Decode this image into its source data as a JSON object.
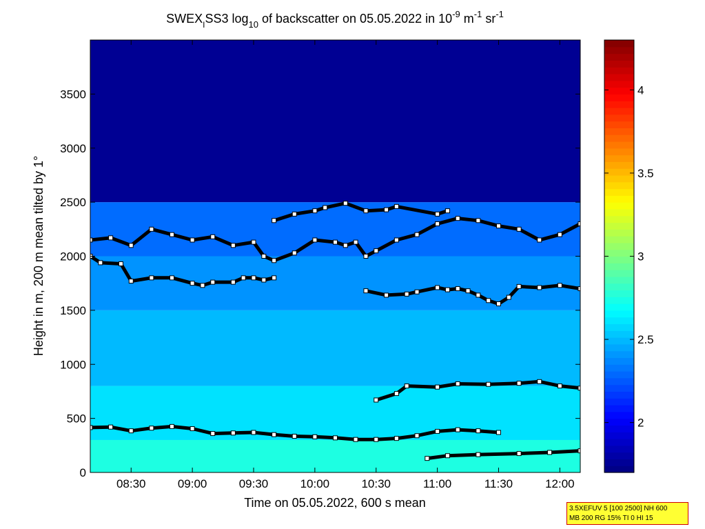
{
  "chart_data": {
    "type": "heatmap",
    "title": {
      "prefix": "SWEX",
      "sub_i": "I",
      "mid": "SS3 log",
      "sub_10": "10",
      "mid2": " of backscatter on 05.05.2022 in 10",
      "sup1": "-9",
      "unit1": " m",
      "sup2": "-1",
      "unit2": " sr",
      "sup3": "-1"
    },
    "xlabel": "Time on 05.05.2022, 600 s mean",
    "ylabel": "Height in m, 200 m mean tilted by 1°",
    "x_range_minutes": [
      490,
      730
    ],
    "ylim": [
      0,
      4000
    ],
    "x_ticks": [
      {
        "minute": 510,
        "label": "08:30"
      },
      {
        "minute": 540,
        "label": "09:00"
      },
      {
        "minute": 570,
        "label": "09:30"
      },
      {
        "minute": 600,
        "label": "10:00"
      },
      {
        "minute": 630,
        "label": "10:30"
      },
      {
        "minute": 660,
        "label": "11:00"
      },
      {
        "minute": 690,
        "label": "11:30"
      },
      {
        "minute": 720,
        "label": "12:00"
      }
    ],
    "y_ticks": [
      0,
      500,
      1000,
      1500,
      2000,
      2500,
      3000,
      3500
    ],
    "colorbar": {
      "clim": [
        1.7,
        4.3
      ],
      "ticks": [
        2,
        2.5,
        3,
        3.5,
        4
      ],
      "tick_labels": [
        "2",
        "2.5",
        "3",
        "3.5",
        "4"
      ],
      "colormap": "jet"
    },
    "field_bands": [
      {
        "from": 0,
        "to": 300,
        "value": 2.75
      },
      {
        "from": 300,
        "to": 800,
        "value": 2.6
      },
      {
        "from": 800,
        "to": 1500,
        "value": 2.5
      },
      {
        "from": 1500,
        "to": 2000,
        "value": 2.4
      },
      {
        "from": 2000,
        "to": 2500,
        "value": 2.3
      },
      {
        "from": 2500,
        "to": 4000,
        "value": 1.75
      }
    ],
    "layer_series": [
      {
        "points": [
          [
            490,
            415
          ],
          [
            500,
            420
          ],
          [
            510,
            385
          ],
          [
            520,
            410
          ],
          [
            530,
            425
          ],
          [
            540,
            405
          ],
          [
            550,
            360
          ],
          [
            560,
            365
          ],
          [
            570,
            370
          ],
          [
            580,
            350
          ],
          [
            590,
            335
          ],
          [
            600,
            330
          ],
          [
            610,
            320
          ],
          [
            620,
            305
          ],
          [
            630,
            305
          ],
          [
            640,
            315
          ],
          [
            650,
            340
          ],
          [
            660,
            380
          ],
          [
            670,
            395
          ],
          [
            680,
            385
          ],
          [
            690,
            370
          ]
        ]
      },
      {
        "points": [
          [
            655,
            130
          ],
          [
            665,
            155
          ],
          [
            680,
            165
          ],
          [
            700,
            175
          ],
          [
            715,
            185
          ],
          [
            730,
            200
          ]
        ]
      },
      {
        "points": [
          [
            630,
            670
          ],
          [
            640,
            730
          ],
          [
            645,
            800
          ],
          [
            660,
            790
          ],
          [
            670,
            820
          ],
          [
            685,
            815
          ],
          [
            700,
            825
          ],
          [
            710,
            840
          ],
          [
            720,
            800
          ],
          [
            730,
            780
          ]
        ]
      },
      {
        "points": [
          [
            490,
            2000
          ],
          [
            495,
            1940
          ],
          [
            505,
            1930
          ],
          [
            510,
            1770
          ],
          [
            520,
            1800
          ],
          [
            530,
            1800
          ],
          [
            540,
            1750
          ],
          [
            545,
            1730
          ],
          [
            550,
            1760
          ],
          [
            560,
            1760
          ],
          [
            565,
            1800
          ],
          [
            570,
            1800
          ],
          [
            575,
            1780
          ],
          [
            580,
            1800
          ]
        ]
      },
      {
        "points": [
          [
            625,
            1680
          ],
          [
            635,
            1640
          ],
          [
            645,
            1650
          ],
          [
            650,
            1670
          ],
          [
            660,
            1710
          ],
          [
            665,
            1690
          ],
          [
            670,
            1700
          ],
          [
            675,
            1680
          ],
          [
            680,
            1640
          ],
          [
            685,
            1590
          ],
          [
            690,
            1560
          ],
          [
            695,
            1620
          ],
          [
            700,
            1720
          ],
          [
            710,
            1710
          ],
          [
            720,
            1730
          ],
          [
            730,
            1700
          ]
        ]
      },
      {
        "points": [
          [
            490,
            2150
          ],
          [
            500,
            2170
          ],
          [
            510,
            2100
          ],
          [
            520,
            2250
          ],
          [
            530,
            2200
          ],
          [
            540,
            2150
          ],
          [
            550,
            2180
          ],
          [
            560,
            2100
          ],
          [
            570,
            2130
          ],
          [
            575,
            2000
          ],
          [
            580,
            1960
          ],
          [
            590,
            2030
          ],
          [
            600,
            2150
          ],
          [
            610,
            2130
          ],
          [
            615,
            2100
          ],
          [
            620,
            2130
          ],
          [
            625,
            2000
          ],
          [
            630,
            2050
          ],
          [
            640,
            2150
          ],
          [
            650,
            2200
          ],
          [
            660,
            2300
          ],
          [
            670,
            2350
          ],
          [
            680,
            2330
          ],
          [
            690,
            2280
          ],
          [
            700,
            2250
          ],
          [
            710,
            2150
          ],
          [
            720,
            2200
          ],
          [
            730,
            2300
          ]
        ]
      },
      {
        "points": [
          [
            580,
            2330
          ],
          [
            590,
            2390
          ],
          [
            600,
            2420
          ],
          [
            605,
            2450
          ],
          [
            615,
            2490
          ],
          [
            625,
            2420
          ],
          [
            635,
            2430
          ],
          [
            640,
            2460
          ],
          [
            660,
            2390
          ],
          [
            665,
            2420
          ]
        ]
      }
    ]
  }
}
